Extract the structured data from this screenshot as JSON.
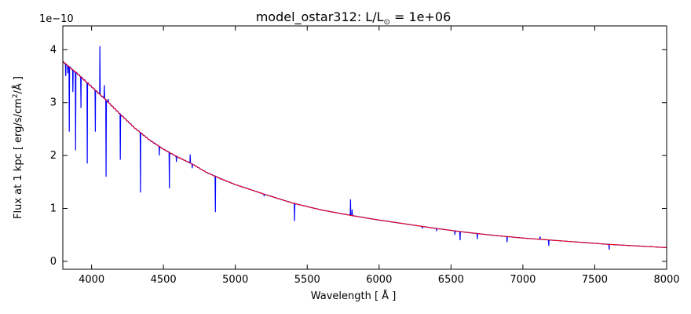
{
  "chart_data": {
    "type": "line",
    "title": "model_ostar312: L/L⊙ = 1e+06",
    "title_parts": {
      "prefix": "model_ostar312: L/L",
      "sub": "⊙",
      "suffix": " = 1e+06"
    },
    "xlabel": "Wavelength [ Å ]",
    "ylabel_parts": {
      "before": "Flux at 1 kpc [ erg/s/cm",
      "sup": "2",
      "after": "/Å ]"
    },
    "y_multiplier": "1e−10",
    "xlim": [
      3800,
      8000
    ],
    "ylim": [
      -0.15,
      4.45
    ],
    "x_ticks": [
      4000,
      4500,
      5000,
      5500,
      6000,
      6500,
      7000,
      7500,
      8000
    ],
    "x_tick_labels": [
      "4000",
      "4500",
      "5000",
      "5500",
      "6000",
      "6500",
      "7000",
      "7500",
      "8000"
    ],
    "y_ticks": [
      0,
      1,
      2,
      3,
      4
    ],
    "y_tick_labels": [
      "0",
      "1",
      "2",
      "3",
      "4"
    ],
    "grid": false,
    "series": [
      {
        "color": "#0000ff",
        "kind": "spectrum",
        "continuum_points": [
          [
            3800,
            3.78
          ],
          [
            3900,
            3.55
          ],
          [
            4000,
            3.3
          ],
          [
            4100,
            3.05
          ],
          [
            4200,
            2.78
          ],
          [
            4300,
            2.52
          ],
          [
            4400,
            2.3
          ],
          [
            4500,
            2.12
          ],
          [
            4600,
            1.97
          ],
          [
            4700,
            1.84
          ],
          [
            4800,
            1.68
          ],
          [
            4900,
            1.56
          ],
          [
            5000,
            1.45
          ],
          [
            5200,
            1.27
          ],
          [
            5400,
            1.1
          ],
          [
            5600,
            0.97
          ],
          [
            5800,
            0.87
          ],
          [
            6000,
            0.78
          ],
          [
            6200,
            0.7
          ],
          [
            6400,
            0.62
          ],
          [
            6600,
            0.55
          ],
          [
            6800,
            0.49
          ],
          [
            7000,
            0.44
          ],
          [
            7200,
            0.4
          ],
          [
            7400,
            0.36
          ],
          [
            7600,
            0.32
          ],
          [
            7800,
            0.29
          ],
          [
            8000,
            0.26
          ]
        ],
        "absorption_lines": [
          [
            3820,
            3.5
          ],
          [
            3835,
            3.55
          ],
          [
            3845,
            2.45
          ],
          [
            3870,
            3.2
          ],
          [
            3889,
            2.1
          ],
          [
            3926,
            2.9
          ],
          [
            3970,
            1.85
          ],
          [
            4026,
            2.45
          ],
          [
            4101,
            1.6
          ],
          [
            4200,
            1.92
          ],
          [
            4340,
            1.3
          ],
          [
            4471,
            2.0
          ],
          [
            4541,
            1.38
          ],
          [
            4590,
            1.88
          ],
          [
            4700,
            1.76
          ],
          [
            4861,
            0.93
          ],
          [
            5200,
            1.23
          ],
          [
            5412,
            0.76
          ],
          [
            6300,
            0.62
          ],
          [
            6400,
            0.57
          ],
          [
            6527,
            0.5
          ],
          [
            6563,
            0.4
          ],
          [
            6683,
            0.42
          ],
          [
            6890,
            0.36
          ],
          [
            7180,
            0.29
          ],
          [
            7600,
            0.22
          ]
        ],
        "emission_lines": [
          [
            4058,
            4.07
          ],
          [
            4089,
            3.33
          ],
          [
            4116,
            3.07
          ],
          [
            4686,
            2.02
          ],
          [
            5801,
            1.17
          ],
          [
            5812,
            0.98
          ],
          [
            7120,
            0.47
          ]
        ]
      },
      {
        "color": "#ff0000",
        "kind": "continuum",
        "points": [
          [
            3800,
            3.78
          ],
          [
            3900,
            3.55
          ],
          [
            4000,
            3.3
          ],
          [
            4100,
            3.05
          ],
          [
            4200,
            2.78
          ],
          [
            4300,
            2.52
          ],
          [
            4400,
            2.3
          ],
          [
            4500,
            2.12
          ],
          [
            4600,
            1.97
          ],
          [
            4700,
            1.84
          ],
          [
            4800,
            1.68
          ],
          [
            4900,
            1.56
          ],
          [
            5000,
            1.45
          ],
          [
            5200,
            1.27
          ],
          [
            5400,
            1.1
          ],
          [
            5600,
            0.97
          ],
          [
            5800,
            0.87
          ],
          [
            6000,
            0.78
          ],
          [
            6200,
            0.7
          ],
          [
            6400,
            0.62
          ],
          [
            6600,
            0.55
          ],
          [
            6800,
            0.49
          ],
          [
            7000,
            0.44
          ],
          [
            7200,
            0.4
          ],
          [
            7400,
            0.36
          ],
          [
            7600,
            0.32
          ],
          [
            7800,
            0.29
          ],
          [
            8000,
            0.26
          ]
        ]
      }
    ]
  }
}
